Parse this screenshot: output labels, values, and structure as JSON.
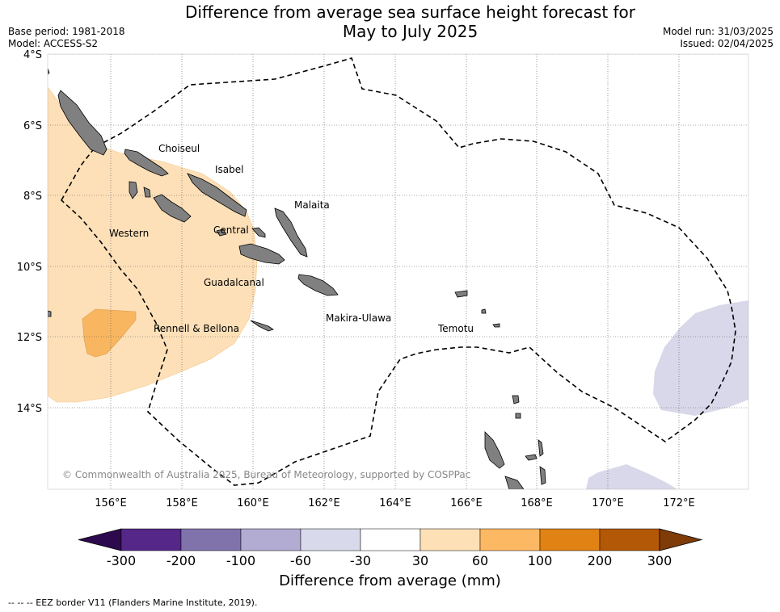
{
  "header": {
    "title_line1": "Difference from average sea surface height forecast for",
    "title_line2": "May to July 2025",
    "base_period": "Base period: 1981-2018",
    "model": "Model: ACCESS-S2",
    "model_run": "Model run: 31/03/2025",
    "issued": "Issued: 02/04/2025"
  },
  "map": {
    "lat_ticks": [
      "4°S",
      "6°S",
      "8°S",
      "10°S",
      "12°S",
      "14°S"
    ],
    "lon_ticks": [
      "156°E",
      "158°E",
      "160°E",
      "162°E",
      "164°E",
      "166°E",
      "168°E",
      "170°E",
      "172°E"
    ],
    "regions": [
      "Choiseul",
      "Isabel",
      "Malaita",
      "Western",
      "Central",
      "Guadalcanal",
      "Makira-Ulawa",
      "Rennell & Bellona",
      "Temotu"
    ],
    "copyright": "© Commonwealth of Australia 2025, Bureau of Meteorology, supported by COSPPac",
    "colors": {
      "land": "#808080",
      "positive_30_60": "#fde0b8",
      "positive_60_100": "#f9b660",
      "negative_30_60": "#d8d8ea"
    }
  },
  "colorbar": {
    "labels": [
      "-300",
      "-200",
      "-100",
      "-60",
      "-30",
      "30",
      "60",
      "100",
      "200",
      "300"
    ],
    "colors": [
      "#2d0a4e",
      "#542788",
      "#8073ac",
      "#b2abd2",
      "#d8daeb",
      "#ffffff",
      "#fee0b6",
      "#fdb863",
      "#e08214",
      "#b35806",
      "#7f3b08"
    ],
    "title": "Difference from average (mm)"
  },
  "footnote": "--  --  -- EEZ border V11 (Flanders Marine Institute, 2019)."
}
